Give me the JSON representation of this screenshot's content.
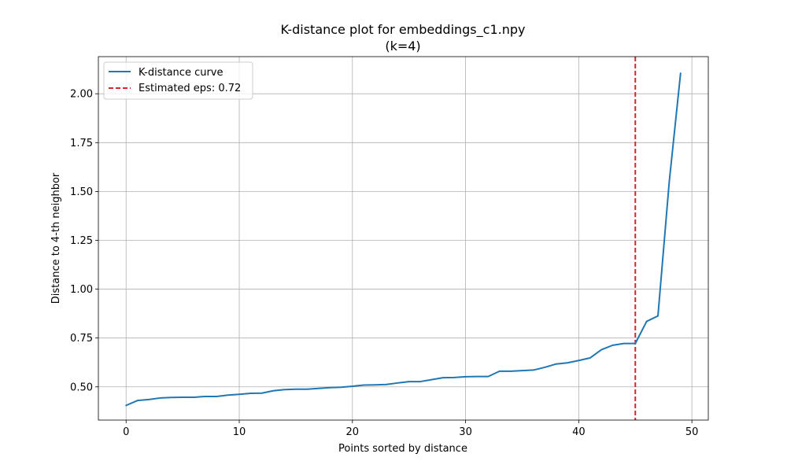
{
  "chart_data": {
    "type": "line",
    "title": "K-distance plot for embeddings_c1.npy",
    "subtitle": "(k=4)",
    "xlabel": "Points sorted by distance",
    "ylabel": "Distance to 4-th neighbor",
    "xlim": [
      -2.45,
      51.45
    ],
    "ylim": [
      0.33,
      2.19
    ],
    "xticks": [
      0,
      10,
      20,
      30,
      40,
      50
    ],
    "xtick_labels": [
      "0",
      "10",
      "20",
      "30",
      "40",
      "50"
    ],
    "yticks": [
      0.5,
      0.75,
      1.0,
      1.25,
      1.5,
      1.75,
      2.0
    ],
    "ytick_labels": [
      "0.50",
      "0.75",
      "1.00",
      "1.25",
      "1.50",
      "1.75",
      "2.00"
    ],
    "grid": true,
    "legend_position": "top-left",
    "series": [
      {
        "name": "K-distance curve",
        "color": "#1f77b4",
        "style": "solid",
        "x": [
          0,
          1,
          2,
          3,
          4,
          5,
          6,
          7,
          8,
          9,
          10,
          11,
          12,
          13,
          14,
          15,
          16,
          17,
          18,
          19,
          20,
          21,
          22,
          23,
          24,
          25,
          26,
          27,
          28,
          29,
          30,
          31,
          32,
          33,
          34,
          35,
          36,
          37,
          38,
          39,
          40,
          41,
          42,
          43,
          44,
          45,
          46,
          47,
          48,
          49
        ],
        "y": [
          0.405,
          0.43,
          0.435,
          0.443,
          0.446,
          0.447,
          0.447,
          0.451,
          0.451,
          0.458,
          0.462,
          0.467,
          0.468,
          0.48,
          0.486,
          0.488,
          0.488,
          0.492,
          0.496,
          0.498,
          0.503,
          0.509,
          0.51,
          0.512,
          0.52,
          0.527,
          0.527,
          0.537,
          0.547,
          0.548,
          0.552,
          0.553,
          0.553,
          0.58,
          0.58,
          0.583,
          0.586,
          0.6,
          0.617,
          0.623,
          0.635,
          0.648,
          0.69,
          0.713,
          0.722,
          0.722,
          0.835,
          0.863,
          1.55,
          2.105
        ]
      }
    ],
    "vlines": [
      {
        "name": "Estimated eps: 0.72",
        "x": 45,
        "color": "#d62728",
        "style": "dashed"
      }
    ]
  }
}
